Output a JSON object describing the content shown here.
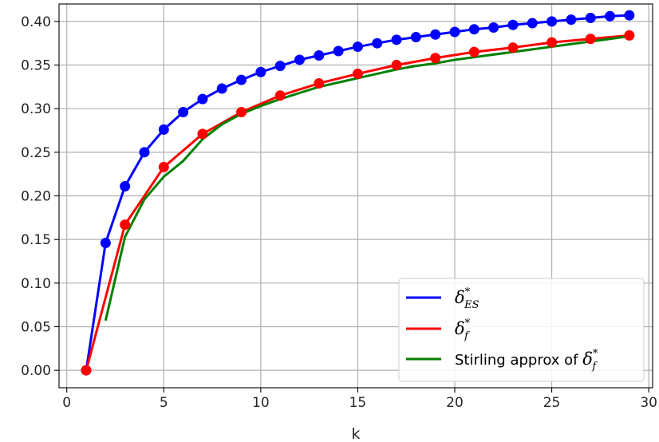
{
  "chart_data": {
    "type": "line",
    "title": "",
    "xlabel": "k",
    "ylabel": "",
    "xlim": [
      -0.4,
      30.2
    ],
    "ylim": [
      -0.02,
      0.42
    ],
    "xticks": [
      0,
      5,
      10,
      15,
      20,
      25,
      30
    ],
    "xtick_labels": [
      "0",
      "5",
      "10",
      "15",
      "20",
      "25",
      "30"
    ],
    "yticks": [
      0.0,
      0.05,
      0.1,
      0.15,
      0.2,
      0.25,
      0.3,
      0.35,
      0.4
    ],
    "ytick_labels": [
      "0.00",
      "0.05",
      "0.10",
      "0.15",
      "0.20",
      "0.25",
      "0.30",
      "0.35",
      "0.40"
    ],
    "grid": true,
    "legend_position": "bottom-right",
    "series": [
      {
        "name": "δ*ES",
        "legend_symbol": "δ",
        "legend_subscript": "ES",
        "legend_superscript": "*",
        "color": "#0000ff",
        "markers": true,
        "x": [
          1,
          2,
          3,
          4,
          5,
          6,
          7,
          8,
          9,
          10,
          11,
          12,
          13,
          14,
          15,
          16,
          17,
          18,
          19,
          20,
          21,
          22,
          23,
          24,
          25,
          26,
          27,
          28,
          29
        ],
        "y": [
          0.0,
          0.146,
          0.211,
          0.25,
          0.276,
          0.296,
          0.311,
          0.323,
          0.333,
          0.342,
          0.349,
          0.356,
          0.361,
          0.366,
          0.371,
          0.375,
          0.379,
          0.382,
          0.385,
          0.388,
          0.391,
          0.393,
          0.396,
          0.398,
          0.4,
          0.402,
          0.404,
          0.406,
          0.407
        ]
      },
      {
        "name": "δ*f",
        "legend_symbol": "δ",
        "legend_subscript": "f",
        "legend_superscript": "*",
        "color": "#ff0000",
        "markers": true,
        "x": [
          1,
          3,
          5,
          7,
          9,
          11,
          13,
          15,
          17,
          19,
          21,
          23,
          25,
          27,
          29
        ],
        "y": [
          0.0,
          0.167,
          0.233,
          0.271,
          0.296,
          0.315,
          0.329,
          0.34,
          0.35,
          0.358,
          0.365,
          0.37,
          0.376,
          0.38,
          0.384
        ]
      },
      {
        "name": "Stirling approx of δ*f",
        "legend_prefix": "Stirling approx of ",
        "legend_symbol": "δ",
        "legend_subscript": "f",
        "legend_superscript": "*",
        "color": "#008000",
        "markers": false,
        "x": [
          2,
          3,
          4,
          5,
          6,
          7,
          8,
          9,
          10,
          11,
          12,
          13,
          14,
          15,
          16,
          17,
          18,
          19,
          20,
          21,
          22,
          23,
          24,
          25,
          26,
          27,
          28,
          29
        ],
        "y": [
          0.057,
          0.153,
          0.196,
          0.222,
          0.24,
          0.265,
          0.282,
          0.294,
          0.303,
          0.311,
          0.318,
          0.325,
          0.33,
          0.335,
          0.34,
          0.345,
          0.349,
          0.352,
          0.356,
          0.359,
          0.362,
          0.365,
          0.368,
          0.371,
          0.374,
          0.377,
          0.38,
          0.383
        ]
      }
    ]
  }
}
